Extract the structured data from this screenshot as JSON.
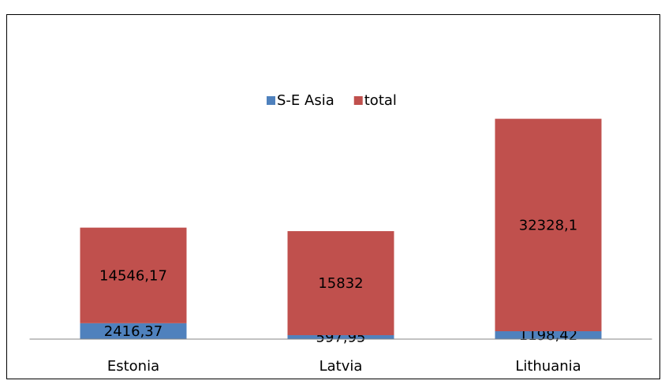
{
  "chart_data": {
    "type": "stacked_bar",
    "categories": [
      "Estonia",
      "Latvia",
      "Lithuania"
    ],
    "series": [
      {
        "name": "S-E Asia",
        "color": "#4f81bd",
        "values": [
          2416.37,
          597.95,
          1198.42
        ],
        "value_labels": [
          "2416,37",
          "597,95",
          "1198,42"
        ]
      },
      {
        "name": "total",
        "color": "#c0504d",
        "values": [
          14546.17,
          15832,
          32328.1
        ],
        "value_labels": [
          "14546,17",
          "15832",
          "32328,1"
        ]
      }
    ],
    "ylim": [
      0,
      35000
    ],
    "legend": "top"
  }
}
